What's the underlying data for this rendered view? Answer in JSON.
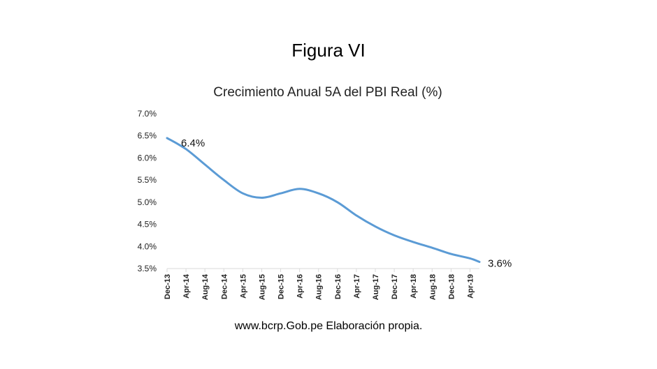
{
  "figure_title": "Figura VI",
  "source_note": "www.bcrp.Gob.pe Elaboración propia.",
  "chart_data": {
    "type": "line",
    "title": "Crecimiento Anual 5A del PBI Real (%)",
    "xlabel": "",
    "ylabel": "",
    "ylim": [
      3.5,
      7.0
    ],
    "yticks": [
      "3.5%",
      "4.0%",
      "4.5%",
      "5.0%",
      "5.5%",
      "6.0%",
      "6.5%",
      "7.0%"
    ],
    "grid": false,
    "legend": "none",
    "line_color": "#5b9bd5",
    "x_tick_labels": [
      "Dec-13",
      "Apr-14",
      "Aug-14",
      "Dec-14",
      "Apr-15",
      "Aug-15",
      "Dec-15",
      "Apr-16",
      "Aug-16",
      "Dec-16",
      "Apr-17",
      "Aug-17",
      "Dec-17",
      "Apr-18",
      "Aug-18",
      "Dec-18",
      "Apr-19"
    ],
    "x_start": "Dec-13",
    "x_end": "Jun-19",
    "series": [
      {
        "name": "",
        "x": [
          "Dec-13",
          "Apr-14",
          "Aug-14",
          "Dec-14",
          "Apr-15",
          "Aug-15",
          "Dec-15",
          "Apr-16",
          "Aug-16",
          "Dec-16",
          "Apr-17",
          "Aug-17",
          "Dec-17",
          "Apr-18",
          "Aug-18",
          "Dec-18",
          "Apr-19",
          "Jun-19"
        ],
        "values": [
          6.45,
          6.2,
          5.85,
          5.5,
          5.2,
          5.1,
          5.2,
          5.3,
          5.2,
          5.0,
          4.7,
          4.45,
          4.25,
          4.1,
          3.97,
          3.83,
          3.73,
          3.65
        ]
      }
    ],
    "annotations": [
      {
        "text": "6.4%",
        "at": "start"
      },
      {
        "text": "3.6%",
        "at": "end"
      }
    ]
  }
}
